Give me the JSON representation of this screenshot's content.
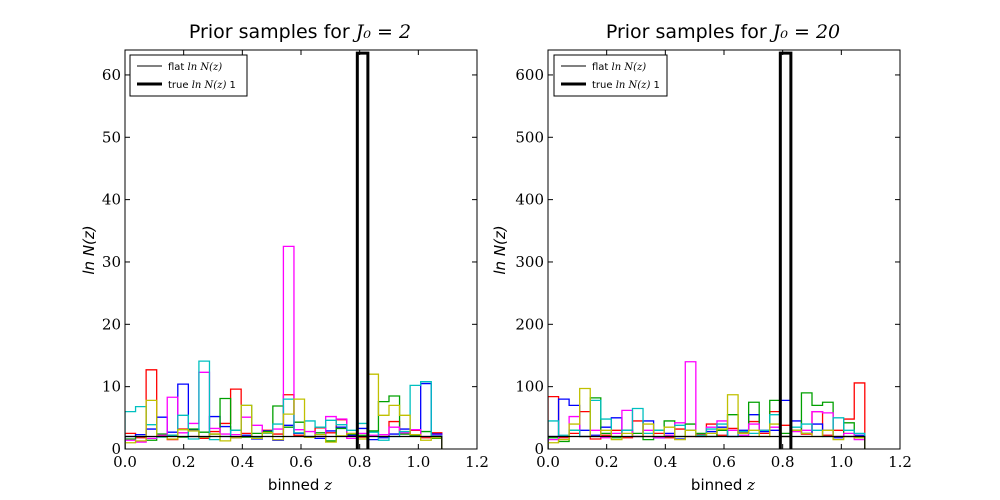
{
  "chart_data": [
    {
      "type": "histogram",
      "title": "Prior samples for J_0 = 2",
      "xlabel": "binned z",
      "ylabel": "ln N(z)",
      "xlim": [
        0.0,
        1.2
      ],
      "ylim": [
        0,
        64
      ],
      "xticks": [
        "0.0",
        "0.2",
        "0.4",
        "0.6",
        "0.8",
        "1.0",
        "1.2"
      ],
      "yticks": [
        "0",
        "10",
        "20",
        "30",
        "40",
        "50",
        "60"
      ],
      "legend": {
        "position": "upper left",
        "entries": [
          {
            "label": "flat ln N(z)",
            "style": "thin"
          },
          {
            "label": "true ln N(z) 1",
            "style": "thick"
          }
        ]
      },
      "bins_left": [
        0.0,
        0.036,
        0.072,
        0.108,
        0.144,
        0.18,
        0.216,
        0.252,
        0.288,
        0.324,
        0.36,
        0.396,
        0.432,
        0.468,
        0.504,
        0.54,
        0.576,
        0.612,
        0.648,
        0.684,
        0.72,
        0.756,
        0.792,
        0.828,
        0.864,
        0.9,
        0.936,
        0.972,
        1.008,
        1.044
      ],
      "bin_width": 0.036,
      "flat_value": 2.0,
      "true_peak": {
        "x0": 0.792,
        "x1": 0.828,
        "value": 63.5
      },
      "series": [
        {
          "color": "#ff0000",
          "values": [
            2.5,
            1.8,
            12.7,
            2.1,
            1.5,
            3.2,
            2.0,
            1.7,
            2.8,
            4.1,
            9.6,
            2.5,
            1.8,
            3.0,
            2.4,
            8.7,
            2.2,
            1.9,
            3.4,
            2.6,
            4.7,
            2.1,
            1.9,
            2.8,
            2.3,
            4.4,
            2.5,
            3.0,
            1.8,
            2.6
          ]
        },
        {
          "color": "#0000ff",
          "values": [
            2.0,
            2.3,
            3.2,
            5.1,
            2.7,
            10.4,
            3.1,
            1.9,
            5.2,
            3.6,
            1.8,
            2.2,
            1.6,
            2.9,
            1.4,
            3.8,
            2.5,
            2.0,
            1.7,
            2.9,
            3.5,
            2.2,
            3.3,
            1.5,
            1.8,
            2.4,
            3.2,
            2.1,
            10.5,
            2.4
          ]
        },
        {
          "color": "#00a000",
          "values": [
            1.6,
            2.0,
            1.4,
            2.4,
            2.2,
            1.9,
            3.2,
            2.7,
            2.4,
            8.1,
            3.0,
            1.9,
            2.5,
            2.8,
            6.9,
            3.5,
            4.3,
            1.9,
            2.6,
            1.3,
            3.3,
            2.4,
            2.2,
            2.9,
            7.6,
            8.5,
            2.4,
            2.2,
            2.8,
            1.7
          ]
        },
        {
          "color": "#ff00ff",
          "values": [
            1.4,
            1.1,
            1.7,
            2.2,
            8.3,
            2.6,
            4.1,
            12.3,
            3.3,
            2.4,
            2.3,
            5.1,
            3.8,
            2.5,
            3.2,
            32.5,
            3.1,
            2.8,
            2.0,
            5.2,
            4.8,
            1.7,
            2.5,
            2.2,
            2.3,
            3.5,
            2.6,
            3.1,
            2.0,
            2.2
          ]
        },
        {
          "color": "#00c0c0",
          "values": [
            6.0,
            6.8,
            3.9,
            1.9,
            2.2,
            5.4,
            1.6,
            14.1,
            1.5,
            2.0,
            3.0,
            7.0,
            1.8,
            2.5,
            4.0,
            8.0,
            2.6,
            4.5,
            3.5,
            4.6,
            3.9,
            3.0,
            4.1,
            2.7,
            1.4,
            2.0,
            2.8,
            10.2,
            10.8,
            2.1
          ]
        },
        {
          "color": "#c0c000",
          "values": [
            1.0,
            1.3,
            7.8,
            2.0,
            1.6,
            3.1,
            2.9,
            1.9,
            2.4,
            1.3,
            1.8,
            7.0,
            1.7,
            2.6,
            1.5,
            5.6,
            8.0,
            1.9,
            2.3,
            1.1,
            2.1,
            2.5,
            1.6,
            12.0,
            5.4,
            7.0,
            5.4,
            2.3,
            1.4,
            1.8
          ]
        }
      ]
    },
    {
      "type": "histogram",
      "title": "Prior samples for J_0 = 20",
      "xlabel": "binned z",
      "ylabel": "ln N(z)",
      "xlim": [
        0.0,
        1.2
      ],
      "ylim": [
        0,
        640
      ],
      "xticks": [
        "0.0",
        "0.2",
        "0.4",
        "0.6",
        "0.8",
        "1.0",
        "1.2"
      ],
      "yticks": [
        "0",
        "100",
        "200",
        "300",
        "400",
        "500",
        "600"
      ],
      "legend": {
        "position": "upper left",
        "entries": [
          {
            "label": "flat ln N(z)",
            "style": "thin"
          },
          {
            "label": "true ln N(z) 1",
            "style": "thick"
          }
        ]
      },
      "bins_left": [
        0.0,
        0.036,
        0.072,
        0.108,
        0.144,
        0.18,
        0.216,
        0.252,
        0.288,
        0.324,
        0.36,
        0.396,
        0.432,
        0.468,
        0.504,
        0.54,
        0.576,
        0.612,
        0.648,
        0.684,
        0.72,
        0.756,
        0.792,
        0.828,
        0.864,
        0.9,
        0.936,
        0.972,
        1.008,
        1.044
      ],
      "bin_width": 0.036,
      "flat_value": 20,
      "true_peak": {
        "x0": 0.792,
        "x1": 0.828,
        "value": 635
      },
      "series": [
        {
          "color": "#ff0000",
          "values": [
            84,
            18,
            25,
            60,
            16,
            22,
            30,
            18,
            45,
            20,
            25,
            18,
            32,
            20,
            24,
            40,
            22,
            33,
            26,
            44,
            25,
            60,
            38,
            30,
            24,
            60,
            22,
            30,
            48,
            106
          ]
        },
        {
          "color": "#0000ff",
          "values": [
            20,
            80,
            70,
            30,
            22,
            35,
            50,
            30,
            20,
            45,
            18,
            25,
            16,
            30,
            20,
            28,
            35,
            20,
            30,
            55,
            28,
            30,
            78,
            45,
            25,
            40,
            30,
            18,
            20,
            22
          ]
        },
        {
          "color": "#00a000",
          "values": [
            18,
            12,
            30,
            20,
            82,
            25,
            18,
            30,
            25,
            15,
            30,
            45,
            20,
            40,
            25,
            20,
            30,
            55,
            25,
            75,
            30,
            78,
            25,
            30,
            90,
            70,
            75,
            20,
            42,
            18
          ]
        },
        {
          "color": "#ff00ff",
          "values": [
            15,
            20,
            52,
            20,
            30,
            18,
            25,
            62,
            20,
            30,
            18,
            22,
            42,
            140,
            20,
            35,
            45,
            30,
            22,
            40,
            30,
            35,
            20,
            28,
            30,
            60,
            58,
            20,
            25,
            15
          ]
        },
        {
          "color": "#00c0c0",
          "values": [
            45,
            22,
            30,
            20,
            78,
            48,
            20,
            30,
            65,
            25,
            30,
            20,
            38,
            30,
            22,
            32,
            40,
            20,
            28,
            25,
            30,
            55,
            20,
            35,
            40,
            30,
            20,
            50,
            30,
            25
          ]
        },
        {
          "color": "#c0c000",
          "values": [
            10,
            15,
            40,
            97,
            20,
            30,
            15,
            25,
            20,
            40,
            20,
            35,
            15,
            30,
            20,
            25,
            32,
            87,
            25,
            30,
            20,
            40,
            20,
            30,
            25,
            20,
            30,
            15,
            20,
            18
          ]
        }
      ]
    }
  ],
  "panels": [
    {
      "title_prefix": "Prior samples for ",
      "title_math": "J₀ = 2",
      "xlabel_text": "binned ",
      "xlabel_math": "z",
      "ylabel": "ln N(z)",
      "legend": [
        {
          "label_text": "flat ",
          "label_math": "ln N(z)",
          "suffix": ""
        },
        {
          "label_text": "true ",
          "label_math": "ln N(z)",
          "suffix": " 1"
        }
      ]
    },
    {
      "title_prefix": "Prior samples for ",
      "title_math": "J₀ = 20",
      "xlabel_text": "binned ",
      "xlabel_math": "z",
      "ylabel": "ln N(z)",
      "legend": [
        {
          "label_text": "flat ",
          "label_math": "ln N(z)",
          "suffix": ""
        },
        {
          "label_text": "true ",
          "label_math": "ln N(z)",
          "suffix": " 1"
        }
      ]
    }
  ]
}
